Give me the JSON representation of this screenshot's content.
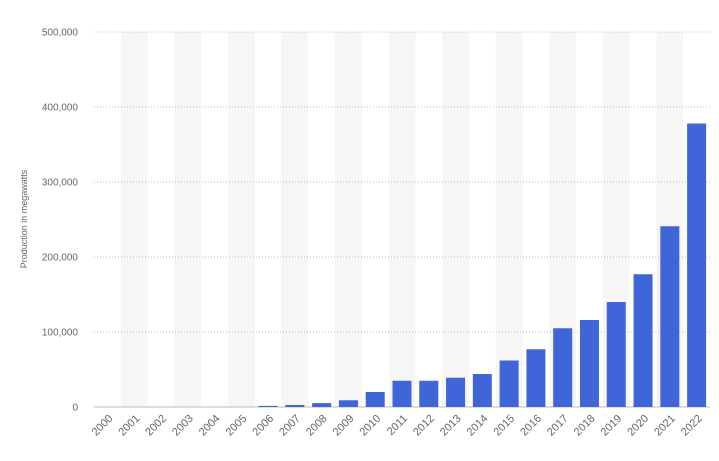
{
  "chart_data": {
    "type": "bar",
    "title": "",
    "xlabel": "",
    "ylabel": "Production in megawatts",
    "ylim": [
      0,
      500000
    ],
    "yticks": [
      0,
      100000,
      200000,
      300000,
      400000,
      500000
    ],
    "ytick_labels": [
      "0",
      "100,000",
      "200,000",
      "300,000",
      "400,000",
      "500,000"
    ],
    "grid": true,
    "legend": "none",
    "bar_color": "#4065d9",
    "band_color": "#f6f6f6",
    "categories": [
      "2000",
      "2001",
      "2002",
      "2003",
      "2004",
      "2005",
      "2006",
      "2007",
      "2008",
      "2009",
      "2010",
      "2011",
      "2012",
      "2013",
      "2014",
      "2015",
      "2016",
      "2017",
      "2018",
      "2019",
      "2020",
      "2021",
      "2022"
    ],
    "values": [
      0,
      0,
      0,
      0,
      0,
      0,
      1500,
      2700,
      5200,
      9000,
      20000,
      35000,
      35000,
      39000,
      44000,
      62000,
      77000,
      105000,
      116000,
      140000,
      177000,
      241000,
      378000
    ]
  }
}
